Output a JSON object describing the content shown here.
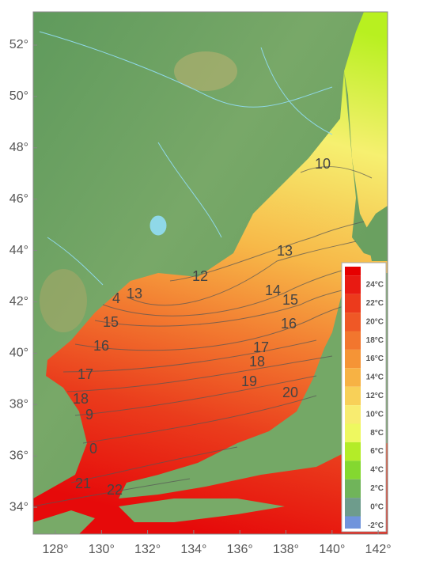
{
  "map": {
    "lat_ticks": [
      {
        "value": 52,
        "label": "52°"
      },
      {
        "value": 50,
        "label": "50°"
      },
      {
        "value": 48,
        "label": "48°"
      },
      {
        "value": 46,
        "label": "46°"
      },
      {
        "value": 44,
        "label": "44°"
      },
      {
        "value": 42,
        "label": "42°"
      },
      {
        "value": 40,
        "label": "40°"
      },
      {
        "value": 38,
        "label": "38°"
      },
      {
        "value": 36,
        "label": "36°"
      },
      {
        "value": 34,
        "label": "34°"
      }
    ],
    "lon_ticks": [
      {
        "value": 128,
        "label": "128°"
      },
      {
        "value": 130,
        "label": "130°"
      },
      {
        "value": 132,
        "label": "132°"
      },
      {
        "value": 134,
        "label": "134°"
      },
      {
        "value": 136,
        "label": "136°"
      },
      {
        "value": 138,
        "label": "138°"
      },
      {
        "value": 140,
        "label": "140°"
      },
      {
        "value": 142,
        "label": "142°"
      }
    ],
    "contour_labels": [
      "10",
      "12",
      "13",
      "13",
      "14",
      "4",
      "15",
      "15",
      "16",
      "16",
      "17",
      "17",
      "18",
      "18",
      "19",
      "9",
      "20",
      "0",
      "21",
      "22"
    ],
    "legend": {
      "top_color": "#e60000",
      "labels": [
        "24°C",
        "22°C",
        "20°C",
        "18°C",
        "16°C",
        "14°C",
        "12°C",
        "10°C",
        "8°C",
        "6°C",
        "4°C",
        "2°C",
        "0°C",
        "-2°C"
      ],
      "colors": [
        "#e81a12",
        "#ec3a1c",
        "#ef5826",
        "#f2762e",
        "#f59436",
        "#f7b244",
        "#f8d058",
        "#f8ec70",
        "#eef860",
        "#b4ec28",
        "#84d830",
        "#70b45a",
        "#6e9c8c",
        "#7094dc"
      ]
    }
  }
}
